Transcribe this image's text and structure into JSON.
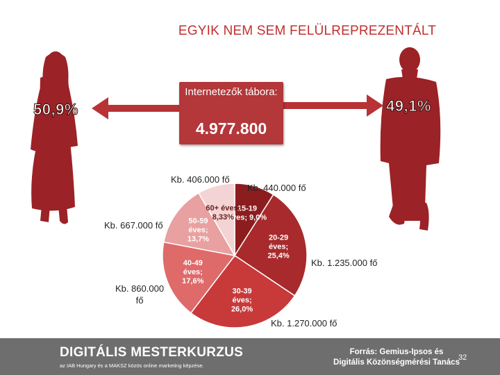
{
  "title": "EGYIK NEM SEM FELÜLREPREZENTÁLT",
  "gender": {
    "female_pct": "50,9%",
    "male_pct": "49,1%"
  },
  "center_box": {
    "label": "Internetezők tábora:",
    "value": "4.977.800"
  },
  "colors": {
    "accent": "#c0302e",
    "figure": "#9b2226",
    "footer": "#6e6e6e"
  },
  "chart_data": {
    "type": "pie",
    "categories": [
      "15-19 éves",
      "20-29 éves",
      "30-39 éves",
      "40-49 éves",
      "50-59 éves",
      "60+ éves"
    ],
    "values": [
      9.0,
      25.4,
      26.0,
      17.6,
      13.7,
      8.33
    ],
    "slice_labels": [
      [
        "15-19",
        "éves; 9,0%"
      ],
      [
        "20-29",
        "éves;",
        "25,4%"
      ],
      [
        "30-39",
        "éves;",
        "26,0%"
      ],
      [
        "40-49",
        "éves;",
        "17,6%"
      ],
      [
        "50-59",
        "éves;",
        "13,7%"
      ],
      [
        "60+ éves;",
        "8,33%"
      ]
    ],
    "callouts": [
      "Kb. 440.000 fő",
      "Kb. 1.235.000 fő",
      "Kb. 1.270.000 fő",
      "Kb. 860.000 fő",
      "Kb. 667.000 fő",
      "Kb. 406.000 fő"
    ],
    "colors": [
      "#8c1d1f",
      "#a82a2c",
      "#c8393a",
      "#df6a6a",
      "#e9a0a0",
      "#f3d3d3"
    ]
  },
  "footer": {
    "brand": "DIGITÁLIS MESTERKURZUS",
    "tagline": "az IAB Hungary és a MAKSZ közös online marketing képzése.",
    "source": "Forrás: Gemius-Ipsos és Digitális Közönségmérési Tanács",
    "page": "32"
  }
}
